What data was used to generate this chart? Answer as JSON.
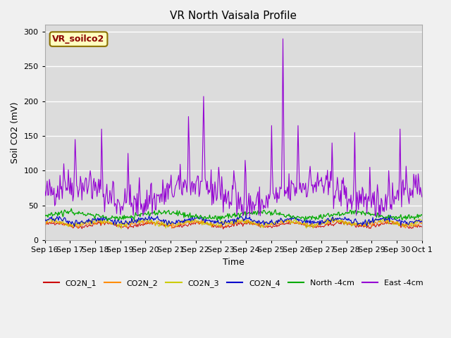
{
  "title": "VR North Vaisala Profile",
  "xlabel": "Time",
  "ylabel": "Soil CO2 (mV)",
  "ylim": [
    0,
    310
  ],
  "yticks": [
    0,
    50,
    100,
    150,
    200,
    250,
    300
  ],
  "annotation_text": "VR_soilco2",
  "annotation_color": "#8B0000",
  "annotation_bg": "#FFFFC0",
  "annotation_border": "#8B7000",
  "plot_bg": "#DCDCDC",
  "fig_bg": "#F0F0F0",
  "colors": {
    "CO2N_1": "#CC0000",
    "CO2N_2": "#FF8C00",
    "CO2N_3": "#CCCC00",
    "CO2N_4": "#0000CC",
    "North_4cm": "#00AA00",
    "East_4cm": "#9400D3"
  },
  "n_points": 500,
  "seed": 42
}
